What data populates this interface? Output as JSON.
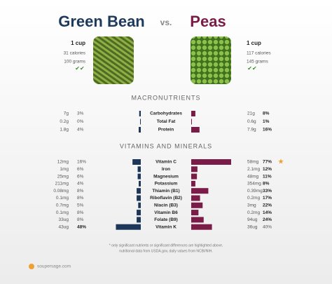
{
  "header": {
    "left": {
      "name": "Green Bean",
      "serving": "1 cup",
      "calories": "31 calories",
      "weight": "100 grams"
    },
    "vs": "vs.",
    "right": {
      "name": "Peas",
      "serving": "1 cup",
      "calories": "117 calories",
      "weight": "145 grams"
    }
  },
  "sections": [
    {
      "title": "MACRONUTRIENTS",
      "rows": [
        {
          "nutrient": "Carbohydrates",
          "left": {
            "amount": "7g",
            "pct": {
              "value": 3,
              "label": "3%"
            }
          },
          "right": {
            "amount": "21g",
            "pct": {
              "value": 8,
              "label": "8%"
            }
          }
        },
        {
          "nutrient": "Total Fat",
          "left": {
            "amount": "0.2g",
            "pct": {
              "value": 0,
              "label": "0%"
            }
          },
          "right": {
            "amount": "0.6g",
            "pct": {
              "value": 1,
              "label": "1%"
            }
          }
        },
        {
          "nutrient": "Protein",
          "left": {
            "amount": "1.8g",
            "pct": {
              "value": 4,
              "label": "4%"
            }
          },
          "right": {
            "amount": "7.9g",
            "pct": {
              "value": 16,
              "label": "16%"
            }
          }
        }
      ]
    },
    {
      "title": "VITAMINS AND MINERALS",
      "rows": [
        {
          "nutrient": "Vitamin C",
          "left": {
            "amount": "12mg",
            "pct": {
              "value": 16,
              "label": "16%"
            }
          },
          "right": {
            "amount": "58mg",
            "pct": {
              "value": 77,
              "label": "77%"
            }
          }
        },
        {
          "nutrient": "Iron",
          "left": {
            "amount": "1mg",
            "pct": {
              "value": 6,
              "label": "6%"
            }
          },
          "right": {
            "amount": "2.1mg",
            "pct": {
              "value": 12,
              "label": "12%"
            }
          }
        },
        {
          "nutrient": "Magnesium",
          "left": {
            "amount": "25mg",
            "pct": {
              "value": 6,
              "label": "6%"
            }
          },
          "right": {
            "amount": "48mg",
            "pct": {
              "value": 11,
              "label": "11%"
            }
          }
        },
        {
          "nutrient": "Potassium",
          "left": {
            "amount": "211mg",
            "pct": {
              "value": 4,
              "label": "4%"
            }
          },
          "right": {
            "amount": "354mg",
            "pct": {
              "value": 8,
              "label": "8%"
            }
          }
        },
        {
          "nutrient": "Thiamin (B1)",
          "left": {
            "amount": "0.08mg",
            "pct": {
              "value": 8,
              "label": "8%"
            }
          },
          "right": {
            "amount": "0.39mg",
            "pct": {
              "value": 33,
              "label": "33%"
            }
          }
        },
        {
          "nutrient": "Riboflavin (B2)",
          "left": {
            "amount": "0.1mg",
            "pct": {
              "value": 8,
              "label": "8%"
            }
          },
          "right": {
            "amount": "0.2mg",
            "pct": {
              "value": 17,
              "label": "17%"
            }
          }
        },
        {
          "nutrient": "Niacin (B3)",
          "left": {
            "amount": "0.7mg",
            "pct": {
              "value": 5,
              "label": "5%"
            }
          },
          "right": {
            "amount": "3mg",
            "pct": {
              "value": 22,
              "label": "22%"
            }
          }
        },
        {
          "nutrient": "Vitamin B6",
          "left": {
            "amount": "0.1mg",
            "pct": {
              "value": 8,
              "label": "8%"
            }
          },
          "right": {
            "amount": "0.2mg",
            "pct": {
              "value": 14,
              "label": "14%"
            }
          }
        },
        {
          "nutrient": "Folate (B9)",
          "left": {
            "amount": "33ug",
            "pct": {
              "value": 8,
              "label": "8%"
            }
          },
          "right": {
            "amount": "94ug",
            "pct": {
              "value": 24,
              "label": "24%"
            }
          }
        },
        {
          "nutrient": "Vitamin K",
          "left": {
            "amount": "43ug",
            "pct": {
              "value": 48,
              "label": "48%"
            }
          },
          "right": {
            "amount": "36ug",
            "pct": {
              "value": 40,
              "label": "40%"
            }
          }
        }
      ]
    }
  ],
  "footnote": [
    "* only significant nutrients or significant differences are highlighted above,",
    "nutritional data from USDA.gov, daily values from NCBI/NIH."
  ],
  "site": "soupersage.com"
}
